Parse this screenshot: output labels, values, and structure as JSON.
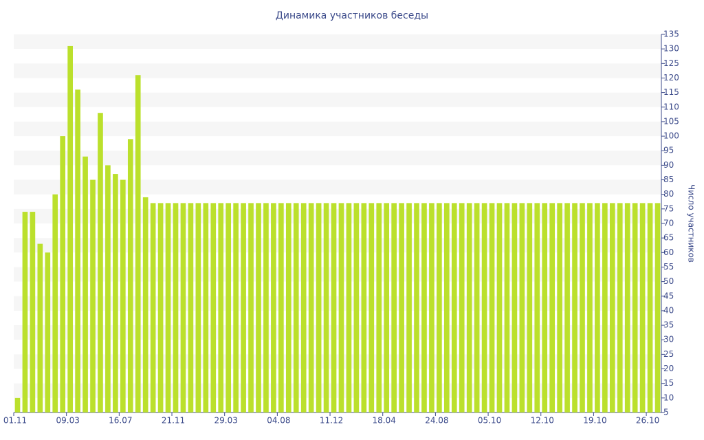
{
  "chart_data": {
    "type": "bar",
    "title": "Динамика участников беседы",
    "y_label": "Число участников",
    "categories": [
      "01.11",
      null,
      null,
      null,
      null,
      null,
      null,
      "09.03",
      null,
      null,
      null,
      null,
      null,
      null,
      "16.07",
      null,
      null,
      null,
      null,
      null,
      null,
      "21.11",
      null,
      null,
      null,
      null,
      null,
      null,
      "29.03",
      null,
      null,
      null,
      null,
      null,
      null,
      "04.08",
      null,
      null,
      null,
      null,
      null,
      null,
      "11.12",
      null,
      null,
      null,
      null,
      null,
      null,
      "18.04",
      null,
      null,
      null,
      null,
      null,
      null,
      "24.08",
      null,
      null,
      null,
      null,
      null,
      null,
      "05.10",
      null,
      null,
      null,
      null,
      null,
      null,
      "12.10",
      null,
      null,
      null,
      null,
      null,
      null,
      "19.10",
      null,
      null,
      null,
      null,
      null,
      null,
      "26.10",
      null
    ],
    "values": [
      10,
      74,
      74,
      63,
      60,
      80,
      100,
      131,
      116,
      93,
      85,
      108,
      90,
      87,
      85,
      99,
      121,
      79,
      77,
      77,
      77,
      77,
      77,
      77,
      77,
      77,
      77,
      77,
      77,
      77,
      77,
      77,
      77,
      77,
      77,
      77,
      77,
      77,
      77,
      77,
      77,
      77,
      77,
      77,
      77,
      77,
      77,
      77,
      77,
      77,
      77,
      77,
      77,
      77,
      77,
      77,
      77,
      77,
      77,
      77,
      77,
      77,
      77,
      77,
      77,
      77,
      77,
      77,
      77,
      77,
      77,
      77,
      77,
      77,
      77,
      77,
      77,
      77,
      77,
      77,
      77,
      77,
      77,
      77,
      77,
      77
    ],
    "color": "#bbe02c",
    "ylim": [
      5,
      135
    ],
    "yticks": [
      5,
      10,
      15,
      20,
      25,
      30,
      35,
      40,
      45,
      50,
      55,
      60,
      65,
      70,
      75,
      80,
      85,
      90,
      95,
      100,
      105,
      110,
      115,
      120,
      125,
      130,
      135
    ],
    "grid": true
  }
}
